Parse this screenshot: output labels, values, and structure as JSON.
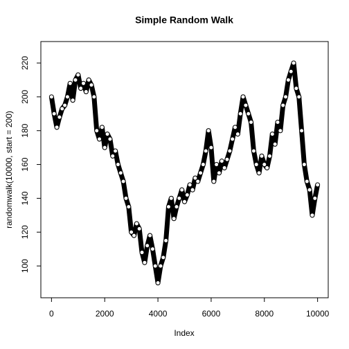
{
  "chart_data": {
    "type": "scatter",
    "title": "Simple Random Walk",
    "x_label": "Index",
    "y_label": "randomwalk(10000, start = 200)",
    "color": "#000000",
    "x": [
      0,
      100,
      200,
      300,
      400,
      500,
      600,
      700,
      800,
      900,
      1000,
      1100,
      1200,
      1300,
      1400,
      1500,
      1600,
      1700,
      1800,
      1900,
      2000,
      2100,
      2200,
      2300,
      2400,
      2500,
      2600,
      2700,
      2800,
      2900,
      3000,
      3100,
      3200,
      3300,
      3400,
      3500,
      3600,
      3700,
      3800,
      3900,
      4000,
      4100,
      4200,
      4300,
      4400,
      4500,
      4600,
      4700,
      4800,
      4900,
      5000,
      5100,
      5200,
      5300,
      5400,
      5500,
      5600,
      5700,
      5800,
      5900,
      6000,
      6100,
      6200,
      6300,
      6400,
      6500,
      6600,
      6700,
      6800,
      6900,
      7000,
      7100,
      7200,
      7300,
      7400,
      7500,
      7600,
      7700,
      7800,
      7900,
      8000,
      8100,
      8200,
      8300,
      8400,
      8500,
      8600,
      8700,
      8800,
      8900,
      9000,
      9100,
      9200,
      9300,
      9400,
      9500,
      9600,
      9700,
      9800,
      9900,
      10000
    ],
    "values": [
      200,
      190,
      182,
      188,
      193,
      195,
      200,
      208,
      198,
      210,
      213,
      205,
      208,
      203,
      210,
      207,
      200,
      180,
      175,
      182,
      170,
      178,
      175,
      165,
      168,
      160,
      155,
      150,
      140,
      135,
      120,
      118,
      125,
      122,
      108,
      102,
      112,
      118,
      110,
      100,
      90,
      100,
      105,
      115,
      135,
      140,
      128,
      135,
      140,
      145,
      138,
      142,
      148,
      145,
      152,
      150,
      155,
      160,
      168,
      180,
      170,
      150,
      160,
      155,
      162,
      158,
      163,
      168,
      175,
      182,
      178,
      190,
      200,
      195,
      190,
      185,
      168,
      160,
      155,
      165,
      160,
      158,
      165,
      178,
      172,
      185,
      180,
      195,
      200,
      210,
      215,
      220,
      205,
      200,
      180,
      160,
      150,
      145,
      130,
      140,
      148
    ],
    "xlim": [
      -400,
      10400
    ],
    "ylim": [
      81.2,
      232.7
    ],
    "xticks": [
      0,
      2000,
      4000,
      6000,
      8000,
      10000
    ],
    "yticks": [
      100,
      120,
      140,
      160,
      180,
      200,
      220
    ]
  }
}
